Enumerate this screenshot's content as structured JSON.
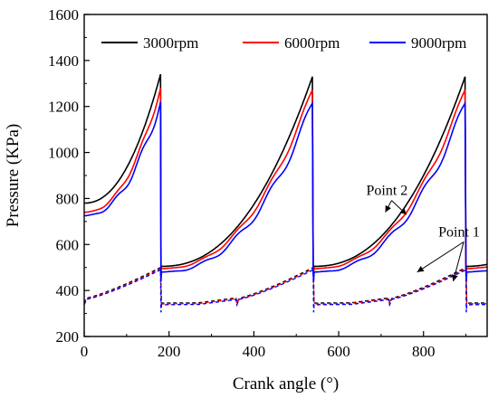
{
  "chart_data": {
    "type": "line",
    "xlabel": "Crank angle (°)",
    "ylabel": "Pressure (KPa)",
    "xlim": [
      0,
      950
    ],
    "ylim": [
      200,
      1600
    ],
    "x_ticks": [
      0,
      200,
      400,
      600,
      800
    ],
    "y_ticks": [
      200,
      400,
      600,
      800,
      1000,
      1200,
      1400,
      1600
    ],
    "grid": false,
    "legend_position": "top",
    "series": [
      {
        "name": "3000rpm",
        "color": "#000000",
        "point2": {
          "start": 780,
          "peak": 1340,
          "dip": 495,
          "post_start": 505,
          "wiggle": 0
        },
        "point1": {
          "low": 365,
          "high": 500,
          "post": 345,
          "spike": 0
        }
      },
      {
        "name": "6000rpm",
        "color": "#ff0000",
        "point2": {
          "start": 740,
          "peak": 1280,
          "dip": 475,
          "post_start": 495,
          "wiggle": 14
        },
        "point1": {
          "low": 362,
          "high": 495,
          "post": 342,
          "spike": 0
        }
      },
      {
        "name": "9000rpm",
        "color": "#0000ff",
        "point2": {
          "start": 725,
          "peak": 1220,
          "dip": 440,
          "post_start": 480,
          "wiggle": 22
        },
        "point1": {
          "low": 360,
          "high": 490,
          "post": 338,
          "spike": 305
        }
      }
    ],
    "cycle_period": 360,
    "peak_angle": 180,
    "annotations": [
      {
        "text": "Point 2",
        "x": 665,
        "y": 815,
        "arrow_targets": [
          [
            710,
            740
          ],
          [
            760,
            730
          ]
        ]
      },
      {
        "text": "Point 1",
        "x": 835,
        "y": 635,
        "arrow_targets": [
          [
            785,
            480
          ],
          [
            870,
            440
          ]
        ]
      }
    ]
  }
}
